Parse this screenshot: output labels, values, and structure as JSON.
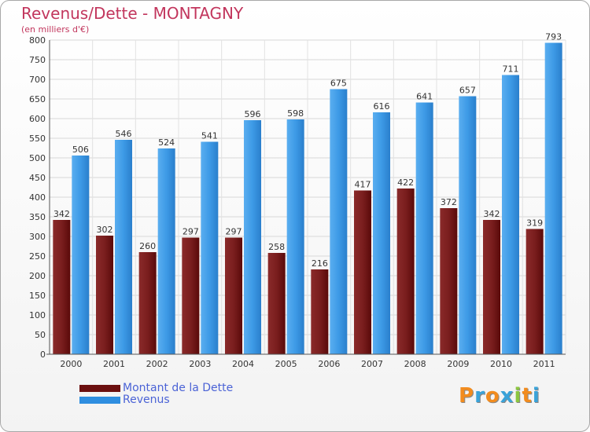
{
  "title": "Revenus/Dette - MONTAGNY",
  "subtitle": "(en milliers d'€)",
  "colors": {
    "dette": "#6b0f0f",
    "revenus": "#2f8ee0",
    "title": "#c2365d",
    "legend_text": "#4b63d6"
  },
  "legend": [
    {
      "label": "Montant de la Dette",
      "color": "#6b0f0f"
    },
    {
      "label": "Revenus",
      "color": "#2f8ee0"
    }
  ],
  "logo": "Proxiti",
  "chart_data": {
    "type": "bar",
    "title": "Revenus/Dette - MONTAGNY",
    "subtitle": "(en milliers d'€)",
    "categories": [
      "2000",
      "2001",
      "2002",
      "2003",
      "2004",
      "2005",
      "2006",
      "2007",
      "2008",
      "2009",
      "2010",
      "2011"
    ],
    "series": [
      {
        "name": "Montant de la Dette",
        "values": [
          342,
          302,
          260,
          297,
          297,
          258,
          216,
          417,
          422,
          372,
          342,
          319
        ]
      },
      {
        "name": "Revenus",
        "values": [
          506,
          546,
          524,
          541,
          596,
          598,
          675,
          616,
          641,
          657,
          711,
          793
        ]
      }
    ],
    "ylim": [
      0,
      800
    ],
    "yticks": [
      0,
      50,
      100,
      150,
      200,
      250,
      300,
      350,
      400,
      450,
      500,
      550,
      600,
      650,
      700,
      750,
      800
    ],
    "grid": true,
    "legend_position": "bottom-left"
  }
}
